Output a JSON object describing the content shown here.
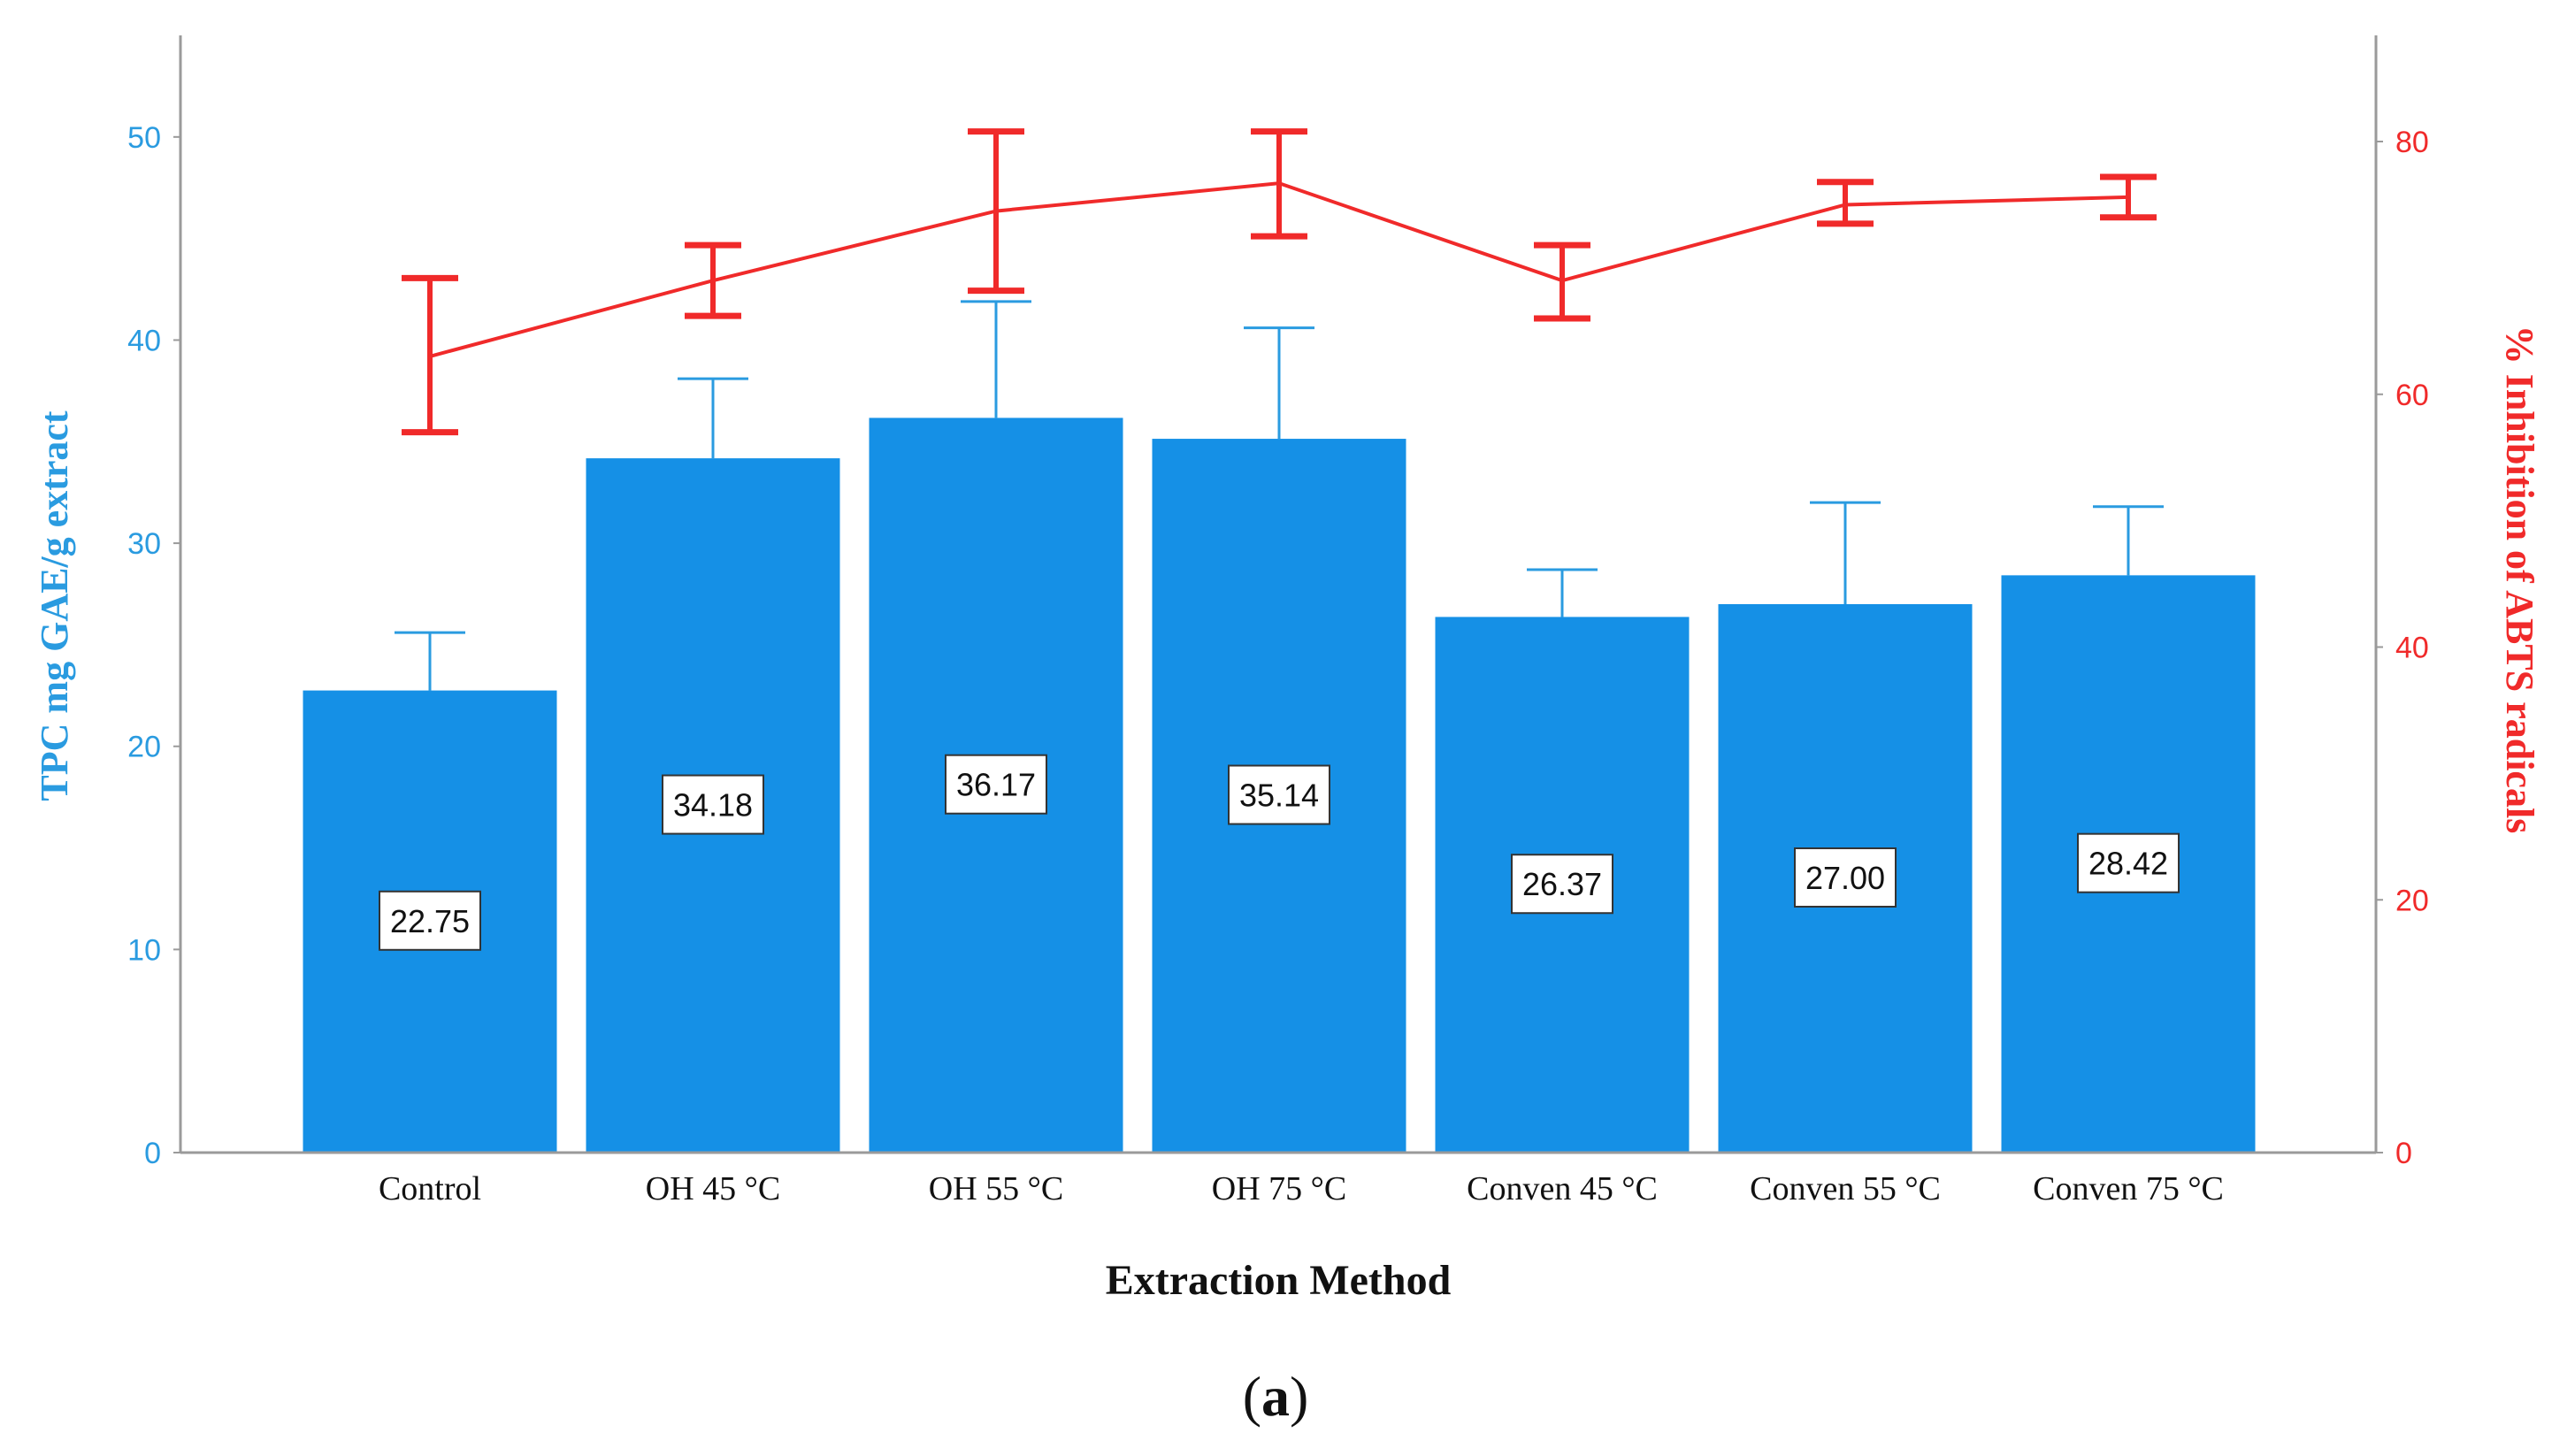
{
  "chart_data": {
    "type": "bar+line",
    "categories": [
      "Control",
      "OH 45 °C",
      "OH 55 °C",
      "OH 75 °C",
      "Conven 45 °C",
      "Conven 55 °C",
      "Conven 75 °C"
    ],
    "bar_series": {
      "name": "TPC mg GAE/g extract",
      "values": [
        22.75,
        34.18,
        36.17,
        35.14,
        26.37,
        27.0,
        28.42
      ],
      "value_labels": [
        "22.75",
        "34.18",
        "36.17",
        "35.14",
        "26.37",
        "27.00",
        "28.42"
      ],
      "error_upper": [
        25.6,
        38.1,
        41.9,
        40.6,
        28.7,
        32.0,
        31.8
      ],
      "color": "#1590e6",
      "axis": "left"
    },
    "line_series": {
      "name": "% Inhibition of ABTS radicals",
      "values": [
        63.0,
        69.0,
        74.5,
        76.7,
        69.0,
        75.0,
        75.6
      ],
      "error_lower": [
        57.0,
        66.2,
        68.2,
        72.5,
        66.0,
        73.5,
        74.0
      ],
      "error_upper": [
        69.2,
        71.8,
        80.8,
        80.8,
        71.8,
        76.8,
        77.2
      ],
      "color": "#f02a2a",
      "axis": "right"
    },
    "left_axis": {
      "label": "TPC mg GAE/g extract",
      "range": [
        0,
        55
      ],
      "ticks": [
        0,
        10,
        20,
        30,
        40,
        50
      ],
      "tick_labels": [
        "0",
        "10",
        "20",
        "30",
        "40",
        "50"
      ]
    },
    "right_axis": {
      "label": "% Inhibition of ABTS radicals",
      "range": [
        0,
        88.4
      ],
      "ticks": [
        0,
        20,
        40,
        60,
        80
      ],
      "tick_labels": [
        "0",
        "20",
        "40",
        "60",
        "80"
      ]
    },
    "xlabel": "Extraction Method",
    "grid": false
  },
  "caption": {
    "prefix": "(",
    "letter": "a",
    "suffix": ")"
  }
}
